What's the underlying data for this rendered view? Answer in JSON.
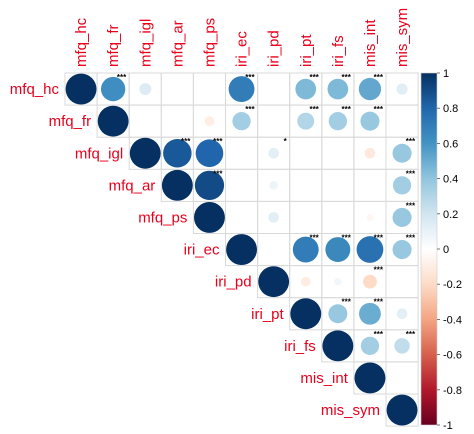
{
  "chart_data": {
    "type": "corrplot-upper-circle",
    "variables": [
      "mfq_hc",
      "mfq_fr",
      "mfq_igl",
      "mfq_ar",
      "mfq_ps",
      "iri_ec",
      "iri_pd",
      "iri_pt",
      "iri_fs",
      "mis_int",
      "mis_sym"
    ],
    "matrix": [
      [
        1.0,
        0.62,
        0.15,
        0.0,
        0.0,
        0.7,
        0.0,
        0.45,
        0.45,
        0.52,
        0.13
      ],
      [
        null,
        1.0,
        0.0,
        0.0,
        -0.1,
        0.35,
        0.0,
        0.3,
        0.35,
        0.38,
        0.0
      ],
      [
        null,
        null,
        1.0,
        0.85,
        0.8,
        0.0,
        0.12,
        0.0,
        0.0,
        -0.12,
        0.38
      ],
      [
        null,
        null,
        null,
        1.0,
        0.9,
        0.0,
        0.08,
        0.0,
        0.0,
        0.0,
        0.35
      ],
      [
        null,
        null,
        null,
        null,
        1.0,
        0.0,
        0.12,
        0.0,
        0.0,
        -0.05,
        0.38
      ],
      [
        null,
        null,
        null,
        null,
        null,
        1.0,
        0.0,
        0.7,
        0.65,
        0.75,
        0.38
      ],
      [
        null,
        null,
        null,
        null,
        null,
        null,
        1.0,
        -0.1,
        0.06,
        -0.2,
        0.0
      ],
      [
        null,
        null,
        null,
        null,
        null,
        null,
        null,
        1.0,
        0.38,
        0.5,
        0.12
      ],
      [
        null,
        null,
        null,
        null,
        null,
        null,
        null,
        null,
        1.0,
        0.35,
        0.25
      ],
      [
        null,
        null,
        null,
        null,
        null,
        null,
        null,
        null,
        null,
        1.0,
        0.0
      ],
      [
        null,
        null,
        null,
        null,
        null,
        null,
        null,
        null,
        null,
        null,
        1.0
      ]
    ],
    "significance": [
      [
        null,
        "***",
        null,
        null,
        null,
        "***",
        null,
        "***",
        "***",
        "***",
        null
      ],
      [
        null,
        null,
        null,
        null,
        null,
        "***",
        null,
        "***",
        "***",
        "***",
        null
      ],
      [
        null,
        null,
        null,
        "***",
        "***",
        null,
        "*",
        null,
        null,
        null,
        "***"
      ],
      [
        null,
        null,
        null,
        null,
        "***",
        null,
        null,
        null,
        null,
        null,
        "***"
      ],
      [
        null,
        null,
        null,
        null,
        null,
        null,
        null,
        null,
        null,
        null,
        "***"
      ],
      [
        null,
        null,
        null,
        null,
        null,
        null,
        null,
        "***",
        "***",
        "***",
        "***"
      ],
      [
        null,
        null,
        null,
        null,
        null,
        null,
        null,
        null,
        null,
        "***",
        null
      ],
      [
        null,
        null,
        null,
        null,
        null,
        null,
        null,
        null,
        "***",
        "***",
        null
      ],
      [
        null,
        null,
        null,
        null,
        null,
        null,
        null,
        null,
        null,
        "***",
        "***"
      ],
      [
        null,
        null,
        null,
        null,
        null,
        null,
        null,
        null,
        null,
        null,
        null
      ],
      [
        null,
        null,
        null,
        null,
        null,
        null,
        null,
        null,
        null,
        null,
        null
      ]
    ],
    "colorbar": {
      "range": [
        -1,
        1
      ],
      "ticks": [
        1,
        0.8,
        0.6,
        0.4,
        0.2,
        0,
        -0.2,
        -0.4,
        -0.6,
        -0.8,
        -1
      ],
      "tick_labels": [
        "1",
        "0.8",
        "0.6",
        "0.4",
        "0.2",
        "0",
        "-0.2",
        "-0.4",
        "-0.6",
        "-0.8",
        "-1"
      ],
      "colors": [
        "#67001F",
        "#B2182B",
        "#D6604D",
        "#F4A582",
        "#FDDBC7",
        "#FFFFFF",
        "#D1E5F0",
        "#92C5DE",
        "#4393C3",
        "#2166AC",
        "#053061"
      ]
    },
    "label_color": "#E8001C"
  }
}
